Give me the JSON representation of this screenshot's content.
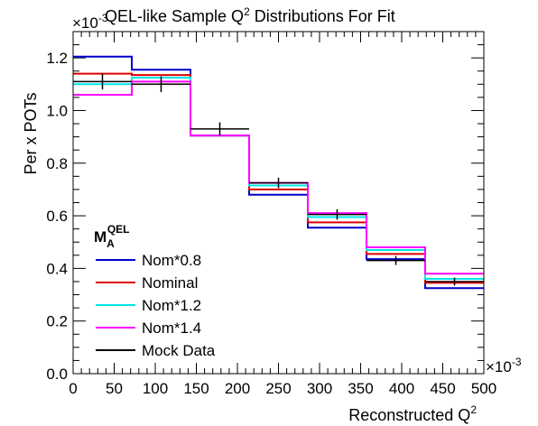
{
  "chart_data": {
    "type": "step-histogram",
    "title_main": "QEL-like Sample Q",
    "title_sup": "2",
    "title_rest": " Distributions For Fit",
    "xlabel_main": "Reconstructed Q",
    "xlabel_sup": "2",
    "ylabel": "Per x POTs",
    "x_exponent": "×10",
    "x_exponent_power": "-3",
    "y_exponent": "×10",
    "y_exponent_power": "-3",
    "xlim": [
      0,
      500
    ],
    "ylim": [
      0,
      1.3
    ],
    "x_ticks": [
      0,
      50,
      100,
      150,
      200,
      250,
      300,
      350,
      400,
      450,
      500
    ],
    "x_tick_labels": [
      "0",
      "50",
      "100",
      "150",
      "200",
      "250",
      "300",
      "350",
      "400",
      "450",
      "500"
    ],
    "y_ticks": [
      0,
      0.2,
      0.4,
      0.6,
      0.8,
      1.0,
      1.2
    ],
    "y_tick_labels": [
      "0.0",
      "0.2",
      "0.4",
      "0.6",
      "0.8",
      "1.0",
      "1.2"
    ],
    "bin_edges": [
      0,
      71.43,
      142.86,
      214.29,
      285.71,
      357.14,
      428.57,
      500
    ],
    "series": [
      {
        "name": "Nom*0.8",
        "color": "#0000cc",
        "values": [
          1.205,
          1.155,
          0.905,
          0.68,
          0.555,
          0.435,
          0.325
        ]
      },
      {
        "name": "Nominal",
        "color": "#dd0000",
        "values": [
          1.14,
          1.135,
          0.905,
          0.7,
          0.575,
          0.455,
          0.345
        ]
      },
      {
        "name": "Nom*1.2",
        "color": "#00e5e5",
        "values": [
          1.1,
          1.125,
          0.905,
          0.715,
          0.595,
          0.47,
          0.36
        ]
      },
      {
        "name": "Nom*1.4",
        "color": "#ff00ff",
        "values": [
          1.06,
          1.11,
          0.905,
          0.725,
          0.61,
          0.48,
          0.38
        ]
      }
    ],
    "mock_data": {
      "name": "Mock Data",
      "color": "#000000",
      "x": [
        35.7,
        107.1,
        178.6,
        250.0,
        321.4,
        392.9,
        464.3
      ],
      "y": [
        1.11,
        1.1,
        0.93,
        0.725,
        0.605,
        0.43,
        0.35
      ],
      "yerr": [
        0.03,
        0.03,
        0.025,
        0.02,
        0.02,
        0.017,
        0.015
      ]
    },
    "legend": {
      "header_main": "M",
      "header_sub": "A",
      "header_sup": "QEL",
      "placement": "bottom-left"
    }
  }
}
